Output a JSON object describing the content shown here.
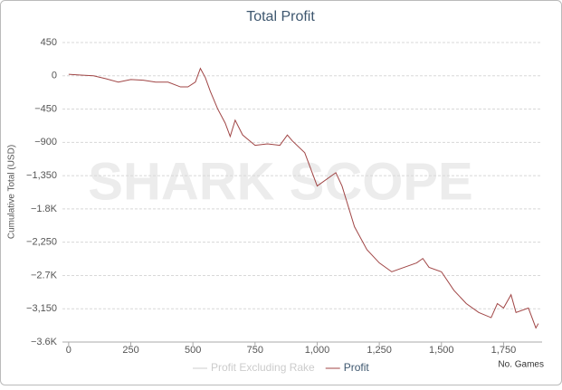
{
  "chart_data": {
    "type": "line",
    "title": "Total Profit",
    "watermark": "SHARK SCOPE",
    "ylabel": "Cumulative Total (USD)",
    "xlabel": "No. Games",
    "x": [
      0,
      50,
      100,
      150,
      200,
      250,
      300,
      350,
      400,
      450,
      480,
      510,
      530,
      550,
      570,
      600,
      630,
      650,
      670,
      700,
      750,
      800,
      850,
      880,
      900,
      950,
      1000,
      1050,
      1075,
      1100,
      1150,
      1200,
      1250,
      1300,
      1350,
      1400,
      1425,
      1450,
      1500,
      1550,
      1600,
      1650,
      1700,
      1725,
      1750,
      1780,
      1800,
      1850,
      1880,
      1890
    ],
    "series": [
      {
        "name": "Profit Excluding Rake",
        "color": "#cccccc",
        "visible": false
      },
      {
        "name": "Profit",
        "color": "#a04545",
        "visible": true,
        "values": [
          20,
          10,
          0,
          -40,
          -85,
          -50,
          -60,
          -85,
          -85,
          -150,
          -150,
          -85,
          100,
          -25,
          -210,
          -450,
          -640,
          -820,
          -600,
          -800,
          -940,
          -920,
          -940,
          -800,
          -880,
          -1040,
          -1490,
          -1370,
          -1310,
          -1490,
          -2040,
          -2350,
          -2530,
          -2650,
          -2590,
          -2530,
          -2470,
          -2590,
          -2650,
          -2900,
          -3080,
          -3200,
          -3270,
          -3080,
          -3140,
          -2960,
          -3200,
          -3140,
          -3410,
          -3350
        ]
      }
    ],
    "xlim": [
      -25,
      1905
    ],
    "xticks": [
      0,
      250,
      500,
      750,
      {
        "value": 1000,
        "label": "1,000"
      },
      {
        "value": 1250,
        "label": "1,250"
      },
      {
        "value": 1500,
        "label": "1,500"
      },
      {
        "value": 1750,
        "label": "1,750"
      }
    ],
    "ylim": [
      -3600,
      450
    ],
    "yticks": [
      450,
      0,
      {
        "value": -450,
        "label": "−450"
      },
      {
        "value": -900,
        "label": "−900"
      },
      {
        "value": -1350,
        "label": "−1,350"
      },
      {
        "value": -1800,
        "label": "−1.8K"
      },
      {
        "value": -2250,
        "label": "−2,250"
      },
      {
        "value": -2700,
        "label": "−2.7K"
      },
      {
        "value": -3150,
        "label": "−3,150"
      },
      {
        "value": -3600,
        "label": "−3.6K"
      }
    ],
    "grid": true
  }
}
